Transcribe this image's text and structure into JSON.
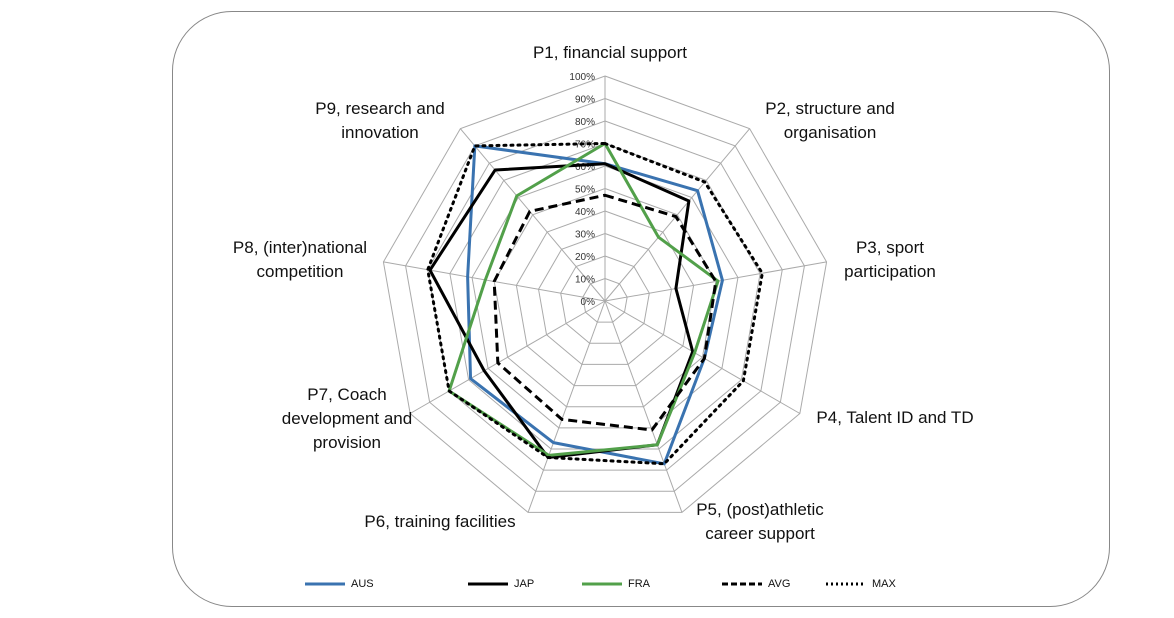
{
  "chart_data": {
    "type": "radar",
    "categories": [
      "P1, financial support",
      "P2, structure and organisation",
      "P3, sport participation",
      "P4, Talent ID and TD",
      "P5, (post)athletic career support",
      "P6, training facilities",
      "P7, Coach development and provision",
      "P8, (inter)national competition",
      "P9, research and innovation"
    ],
    "category_labels": [
      "P1, financial support",
      "P2, structure and\norganisation",
      "P3, sport\nparticipation",
      "P4, Talent ID and TD",
      "P5, (post)athletic\ncareer support",
      "P6, training facilities",
      "P7, Coach\ndevelopment and\nprovision",
      "P8, (inter)national\ncompetition",
      "P9, research and\ninnovation"
    ],
    "rlim": [
      0,
      100
    ],
    "tick_labels": [
      "0%",
      "10%",
      "20%",
      "30%",
      "40%",
      "50%",
      "60%",
      "70%",
      "80%",
      "90%",
      "100%"
    ],
    "series": [
      {
        "name": "AUS",
        "color": "#3a73b0",
        "dash": "solid",
        "values": [
          61,
          64,
          53,
          51,
          77,
          67,
          69,
          62,
          90
        ]
      },
      {
        "name": "JAP",
        "color": "#000000",
        "dash": "solid",
        "values": [
          61,
          58,
          32,
          45,
          68,
          74,
          62,
          79,
          76
        ]
      },
      {
        "name": "FRA",
        "color": "#52a04a",
        "dash": "solid",
        "values": [
          70,
          37,
          51,
          46,
          68,
          73,
          80,
          54,
          61
        ]
      },
      {
        "name": "AVG",
        "color": "#000000",
        "dash": "dashed",
        "values": [
          47,
          49,
          50,
          51,
          61,
          56,
          55,
          50,
          52
        ]
      },
      {
        "name": "MAX",
        "color": "#000000",
        "dash": "dotted",
        "values": [
          70,
          69,
          71,
          71,
          77,
          74,
          80,
          80,
          90
        ]
      }
    ],
    "legend_position": "bottom",
    "grid": true
  }
}
